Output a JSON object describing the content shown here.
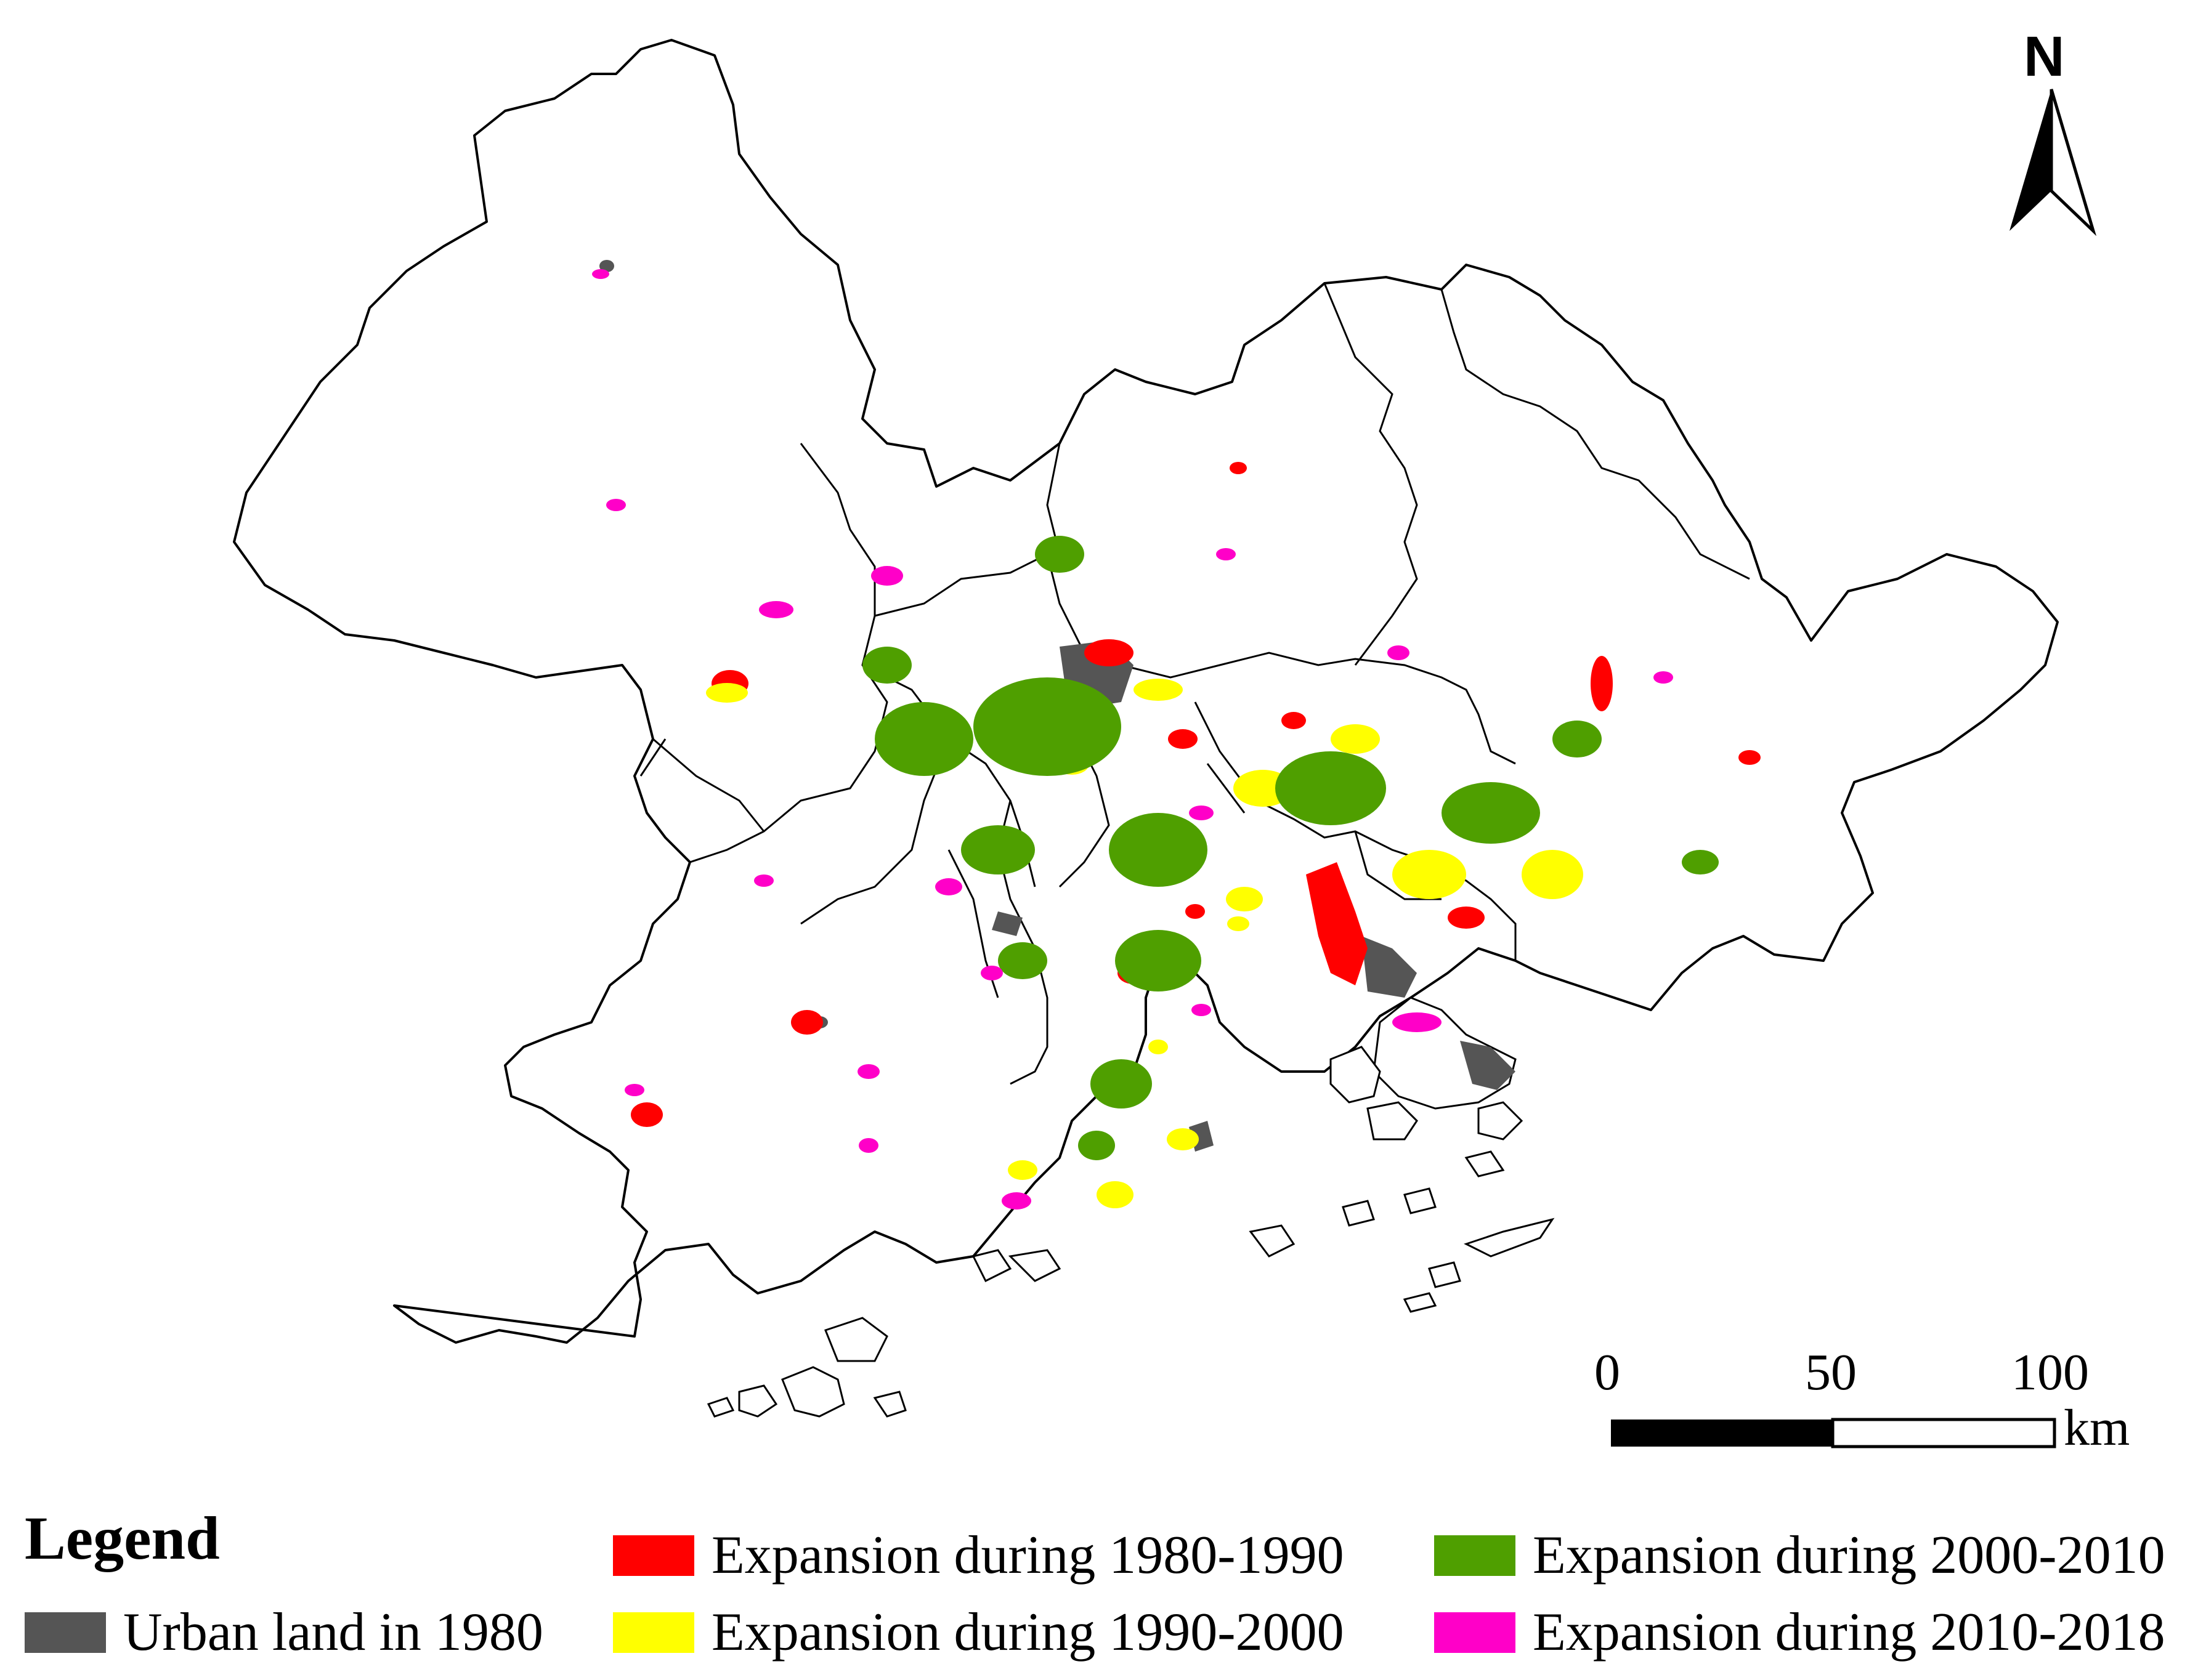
{
  "north_label": "N",
  "scale": {
    "ticks": [
      "0",
      "50",
      "100"
    ],
    "unit": "km"
  },
  "legend": {
    "title": "Legend",
    "items": [
      {
        "label": "Urban land in 1980",
        "color": "#555555"
      },
      {
        "label": "Expansion during 1980-1990",
        "color": "#ff0000"
      },
      {
        "label": "Expansion during 1990-2000",
        "color": "#ffff00"
      },
      {
        "label": "Expansion during 2000-2010",
        "color": "#4f9f00"
      },
      {
        "label": "Expansion during 2010-2018",
        "color": "#ff00c8"
      }
    ]
  }
}
